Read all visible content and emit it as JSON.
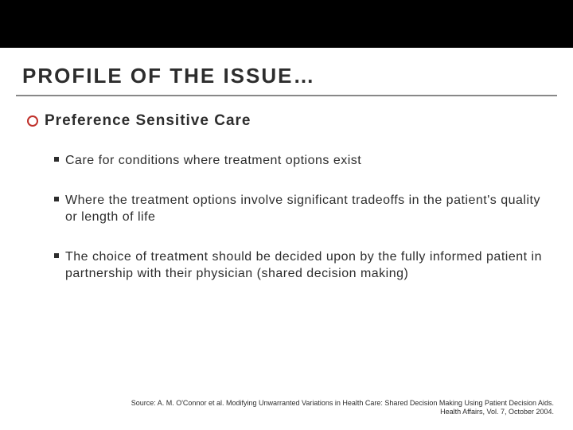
{
  "layout": {
    "top_bar_height": 60,
    "top_bar_color": "#000000",
    "underline_color": "#888888"
  },
  "title": {
    "text": "PROFILE OF THE ISSUE…",
    "color": "#2d2d2d",
    "fontsize": 26
  },
  "heading": {
    "bullet": {
      "size": 14,
      "border_width": 2,
      "border_color": "#c0302a"
    },
    "text": "Preference Sensitive Care",
    "color": "#2d2d2d",
    "fontsize": 19
  },
  "bullets": {
    "square": {
      "size": 6,
      "color": "#2d2d2d"
    },
    "text_color": "#2d2d2d",
    "fontsize": 16,
    "items": [
      "Care for conditions where treatment options exist",
      "Where the treatment options involve significant tradeoffs in the patient's quality or length of life",
      "The choice of treatment should be decided upon by the fully informed patient in partnership with their physician (shared decision making)"
    ]
  },
  "footer": {
    "line1": "Source: A. M. O'Connor et al. Modifying Unwarranted Variations in Health Care:  Shared Decision Making Using Patient Decision Aids.",
    "line2": "Health Affairs,  Vol. 7, October 2004.",
    "color": "#2d2d2d",
    "fontsize": 9
  }
}
